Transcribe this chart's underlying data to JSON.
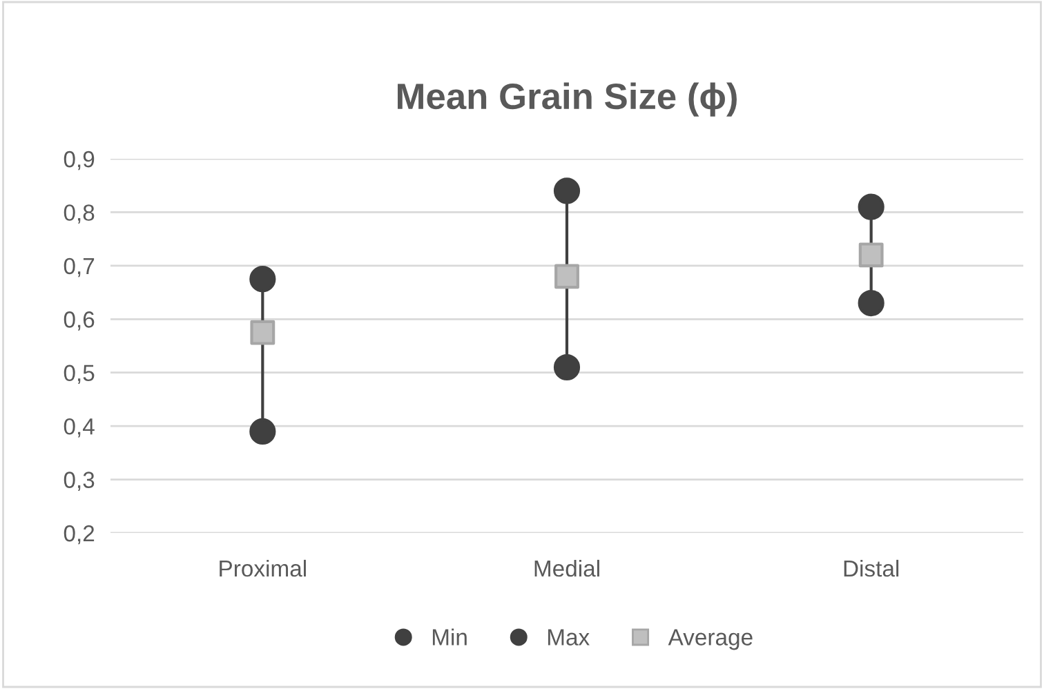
{
  "chart_data": {
    "type": "scatter",
    "title": "Mean Grain Size (ϕ)",
    "categories": [
      "Proximal",
      "Medial",
      "Distal"
    ],
    "series": [
      {
        "type": "line",
        "color": "#404040",
        "marker": "none",
        "x": [
          "Proximal",
          "Proximal"
        ],
        "values": [
          0.39,
          0.675
        ]
      },
      {
        "type": "line",
        "color": "#404040",
        "marker": "none",
        "x": [
          "Medial",
          "Medial"
        ],
        "values": [
          0.51,
          0.84
        ]
      },
      {
        "type": "line",
        "color": "#404040",
        "marker": "none",
        "x": [
          "Distal",
          "Distal"
        ],
        "values": [
          0.63,
          0.81
        ]
      },
      {
        "name": "Min",
        "color": "#404040",
        "marker": "circle",
        "values": [
          0.39,
          0.51,
          0.63
        ]
      },
      {
        "name": "Max",
        "color": "#404040",
        "marker": "circle",
        "values": [
          0.675,
          0.84,
          0.81
        ]
      },
      {
        "name": "Average",
        "color": "#bfbfbf",
        "marker": "square",
        "values": [
          0.575,
          0.68,
          0.72
        ]
      }
    ],
    "ylim": [
      0.2,
      0.9
    ],
    "yticks": [
      {
        "value": 0.2,
        "label": "0,2"
      },
      {
        "value": 0.3,
        "label": "0,3"
      },
      {
        "value": 0.4,
        "label": "0,4"
      },
      {
        "value": 0.5,
        "label": "0,5"
      },
      {
        "value": 0.6,
        "label": "0,6"
      },
      {
        "value": 0.7,
        "label": "0,7"
      },
      {
        "value": 0.8,
        "label": "0,8"
      },
      {
        "value": 0.9,
        "label": "0,9"
      }
    ],
    "grid": "y",
    "legend": "bottom"
  }
}
